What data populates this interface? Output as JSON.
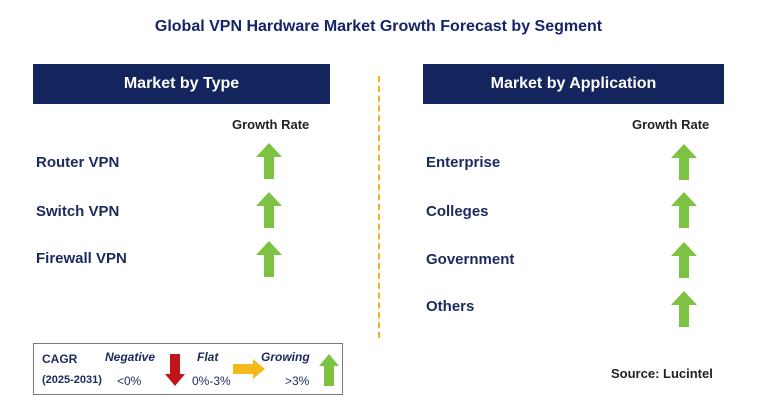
{
  "title": "Global VPN Hardware Market Growth Forecast by Segment",
  "colors": {
    "header_bg": "#14245c",
    "growing": "#7dc242",
    "negative": "#c0141b",
    "flat": "#f6b81a",
    "divider": "#f2b21a"
  },
  "left_panel": {
    "header": "Market by Type",
    "column_label": "Growth Rate",
    "rows": [
      {
        "label": "Router VPN",
        "growth": "growing",
        "icon": "up-arrow-icon"
      },
      {
        "label": "Switch VPN",
        "growth": "growing",
        "icon": "up-arrow-icon"
      },
      {
        "label": "Firewall VPN",
        "growth": "growing",
        "icon": "up-arrow-icon"
      }
    ]
  },
  "right_panel": {
    "header": "Market by Application",
    "column_label": "Growth Rate",
    "rows": [
      {
        "label": "Enterprise",
        "growth": "growing",
        "icon": "up-arrow-icon"
      },
      {
        "label": "Colleges",
        "growth": "growing",
        "icon": "up-arrow-icon"
      },
      {
        "label": "Government",
        "growth": "growing",
        "icon": "up-arrow-icon"
      },
      {
        "label": "Others",
        "growth": "growing",
        "icon": "up-arrow-icon"
      }
    ]
  },
  "legend": {
    "cagr_label": "CAGR",
    "period": "(2025-2031)",
    "negative_label": "Negative",
    "negative_range": "<0%",
    "flat_label": "Flat",
    "flat_range": "0%-3%",
    "growing_label": "Growing",
    "growing_range": ">3%"
  },
  "source": "Source: Lucintel"
}
